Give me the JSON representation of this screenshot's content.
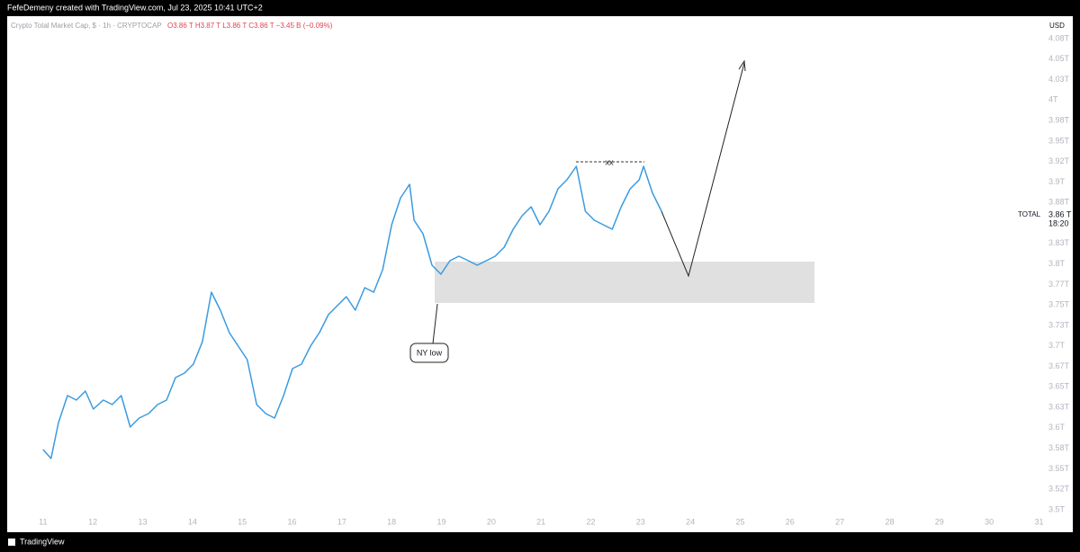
{
  "chart_data": {
    "type": "line",
    "header": "FefeDemeny created with TradingView.com, Jul 23, 2025 10:41 UTC+2",
    "legend_name": "Crypto Total Market Cap, $ · 1h · CRYPTOCAP",
    "legend_ohlc": "O3.86 T  H3.87 T  L3.86 T  C3.86 T  −3.45 B (−0.09%)",
    "currency": "USD",
    "symbol": "TOTAL",
    "last_price": "3.86 T",
    "countdown": "18:20",
    "annotations": [
      "xx",
      "NY low"
    ],
    "footer": "TradingView",
    "color": "#3a9be0",
    "x": [
      11.0,
      11.16,
      11.31,
      11.49,
      11.67,
      11.85,
      12.01,
      12.21,
      12.39,
      12.57,
      12.75,
      12.93,
      13.12,
      13.3,
      13.48,
      13.66,
      13.84,
      14.02,
      14.2,
      14.38,
      14.56,
      14.74,
      14.92,
      15.1,
      15.29,
      15.47,
      15.65,
      15.83,
      16.01,
      16.19,
      16.37,
      16.55,
      16.73,
      16.91,
      17.09,
      17.27,
      17.46,
      17.64,
      17.82,
      18.0,
      18.18,
      18.36,
      18.45,
      18.63,
      18.81,
      18.99,
      19.17,
      19.35,
      19.54,
      19.72,
      19.9,
      20.08,
      20.26,
      20.44,
      20.62,
      20.8,
      20.98,
      21.16,
      21.34,
      21.52,
      21.71,
      21.89,
      22.07,
      22.25,
      22.43,
      22.61,
      22.79,
      22.97,
      23.06,
      23.24,
      23.42
    ],
    "values": [
      3.5735,
      3.5625,
      3.6064,
      3.6394,
      3.6339,
      3.6448,
      3.6229,
      3.6339,
      3.6284,
      3.6394,
      3.601,
      3.6119,
      3.6174,
      3.6284,
      3.6339,
      3.6613,
      3.6668,
      3.6778,
      3.7052,
      3.7656,
      3.7436,
      3.7162,
      3.6997,
      3.6833,
      3.6284,
      3.6174,
      3.6119,
      3.6394,
      3.6723,
      3.6778,
      3.6997,
      3.7162,
      3.7381,
      3.7491,
      3.7601,
      3.7436,
      3.771,
      3.7656,
      3.793,
      3.8479,
      3.8808,
      3.8972,
      3.8533,
      3.8369,
      3.7985,
      3.7875,
      3.804,
      3.8094,
      3.804,
      3.7985,
      3.804,
      3.8094,
      3.8204,
      3.8424,
      3.8588,
      3.8698,
      3.8479,
      3.8643,
      3.8917,
      3.9027,
      3.9192,
      3.8643,
      3.8533,
      3.8479,
      3.8424,
      3.8698,
      3.8917,
      3.9027,
      3.9192,
      3.8863,
      3.8643
    ],
    "xlim": [
      10.28,
      31.1
    ],
    "xticks": [
      11,
      12,
      13,
      14,
      15,
      16,
      17,
      18,
      19,
      20,
      21,
      22,
      23,
      24,
      25,
      26,
      27,
      28,
      29,
      30,
      31
    ],
    "ylim": [
      3.5,
      4.075
    ],
    "yticks": [
      {
        "value": 3.5,
        "label": "3.5T"
      },
      {
        "value": 3.525,
        "label": "3.52T"
      },
      {
        "value": 3.55,
        "label": "3.55T"
      },
      {
        "value": 3.575,
        "label": "3.58T"
      },
      {
        "value": 3.6,
        "label": "3.6T"
      },
      {
        "value": 3.625,
        "label": "3.63T"
      },
      {
        "value": 3.65,
        "label": "3.65T"
      },
      {
        "value": 3.675,
        "label": "3.67T"
      },
      {
        "value": 3.7,
        "label": "3.7T"
      },
      {
        "value": 3.725,
        "label": "3.73T"
      },
      {
        "value": 3.75,
        "label": "3.75T"
      },
      {
        "value": 3.775,
        "label": "3.77T"
      },
      {
        "value": 3.8,
        "label": "3.8T"
      },
      {
        "value": 3.825,
        "label": "3.83T"
      },
      {
        "value": 3.875,
        "label": "3.88T"
      },
      {
        "value": 3.9,
        "label": "3.9T"
      },
      {
        "value": 3.925,
        "label": "3.92T"
      },
      {
        "value": 3.95,
        "label": "3.95T"
      },
      {
        "value": 3.975,
        "label": "3.98T"
      },
      {
        "value": 4.0,
        "label": "4T"
      },
      {
        "value": 4.025,
        "label": "4.03T"
      },
      {
        "value": 4.05,
        "label": "4.05T"
      },
      {
        "value": 4.075,
        "label": "4.08T"
      }
    ],
    "grid": false
  }
}
